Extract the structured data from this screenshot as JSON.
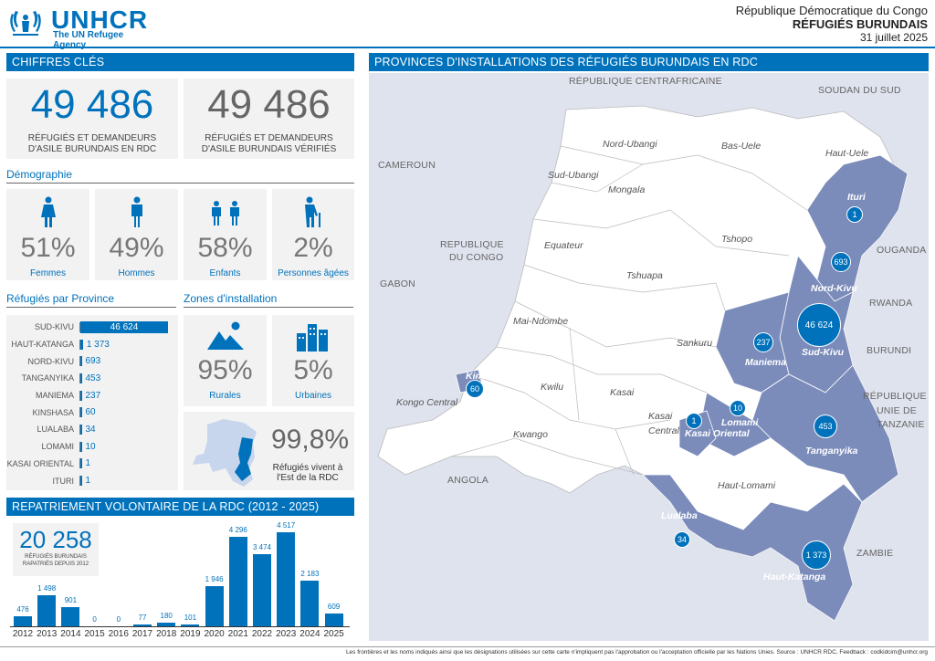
{
  "header": {
    "logo_text": "UNHCR",
    "logo_sub": "The UN Refugee Agency",
    "country": "République Démocratique du Congo",
    "title": "RÉFUGIÉS BURUNDAIS",
    "date": "31 juillet 2025"
  },
  "key": {
    "section_title": "CHIFFRES CLÉS",
    "total_value": "49 486",
    "total_label_1": "RÉFUGIÉS ET DEMANDEURS",
    "total_label_2": "D'ASILE BURUNDAIS EN RDC",
    "verified_value": "49 486",
    "verified_label_1": "RÉFUGIÉS ET DEMANDEURS",
    "verified_label_2": "D'ASILE BURUNDAIS VÉRIFIÉS"
  },
  "demo": {
    "title": "Démographie",
    "items": [
      {
        "pct": "51%",
        "label": "Femmes"
      },
      {
        "pct": "49%",
        "label": "Hommes"
      },
      {
        "pct": "58%",
        "label": "Enfants"
      },
      {
        "pct": "2%",
        "label": "Personnes âgées"
      }
    ]
  },
  "provinces": {
    "title": "Réfugiés par Province",
    "max": 46624,
    "rows": [
      {
        "name": "SUD-KIVU",
        "value": 46624,
        "label": "46 624"
      },
      {
        "name": "HAUT-KATANGA",
        "value": 1373,
        "label": "1 373"
      },
      {
        "name": "NORD-KIVU",
        "value": 693,
        "label": "693"
      },
      {
        "name": "TANGANYIKA",
        "value": 453,
        "label": "453"
      },
      {
        "name": "MANIEMA",
        "value": 237,
        "label": "237"
      },
      {
        "name": "KINSHASA",
        "value": 60,
        "label": "60"
      },
      {
        "name": "LUALABA",
        "value": 34,
        "label": "34"
      },
      {
        "name": "LOMAMI",
        "value": 10,
        "label": "10"
      },
      {
        "name": "KASAI ORIENTAL",
        "value": 1,
        "label": "1"
      },
      {
        "name": "ITURI",
        "value": 1,
        "label": "1"
      }
    ]
  },
  "zones": {
    "title": "Zones d'installation",
    "rural_pct": "95%",
    "rural_label": "Rurales",
    "urban_pct": "5%",
    "urban_label": "Urbaines",
    "east_pct": "99,8%",
    "east_label_1": "Réfugiés vivent à",
    "east_label_2": "l'Est de la RDC"
  },
  "repat": {
    "title": "REPATRIEMENT VOLONTAIRE DE LA RDC (2012 - 2025)",
    "total": "20 258",
    "sub_1": "RÉFUGIÉS BURUNDAIS",
    "sub_2": "RAPATRIÉS DEPUIS 2012"
  },
  "chart_data": {
    "type": "bar",
    "categories": [
      "2012",
      "2013",
      "2014",
      "2015",
      "2016",
      "2017",
      "2018",
      "2019",
      "2020",
      "2021",
      "2022",
      "2023",
      "2024",
      "2025"
    ],
    "values": [
      476,
      1498,
      901,
      0,
      0,
      77,
      180,
      101,
      1946,
      4296,
      3474,
      4517,
      2183,
      609
    ],
    "labels": [
      "476",
      "1 498",
      "901",
      "0",
      "0",
      "77",
      "180",
      "101",
      "1 946",
      "4 296",
      "3 474",
      "4 517",
      "2 183",
      "609"
    ],
    "ylim": [
      0,
      4517
    ]
  },
  "map": {
    "title": "PROVINCES D'INSTALLATIONS DES RÉFUGIÉS BURUNDAIS EN RDC",
    "countries": [
      "RÉPUBLIQUE CENTRAFRICAINE",
      "SOUDAN DU SUD",
      "CAMEROUN",
      "REPUBLIQUE",
      "DU CONGO",
      "GABON",
      "OUGANDA",
      "RWANDA",
      "BURUNDI",
      "RÉPUBLIQUE",
      "UNIE DE",
      "TANZANIE",
      "ANGOLA",
      "ZAMBIE"
    ],
    "white_provinces": [
      "Nord-Ubangi",
      "Bas-Uele",
      "Haut-Uele",
      "Sud-Ubangi",
      "Mongala",
      "Equateur",
      "Tshopo",
      "Tshuapa",
      "Mai-Ndombe",
      "Sankuru",
      "Kwilu",
      "Kasai",
      "Kongo Central",
      "Kwango",
      "Kasai",
      "Central",
      "Haut-Lomami"
    ],
    "blue_provinces": [
      "Ituri",
      "Nord-Kivu",
      "Sud-Kivu",
      "Maniema",
      "Kinshasa",
      "Lomami",
      "Kasai Oriental",
      "Tanganyika",
      "Lualaba",
      "Haut-Katanga"
    ],
    "bubbles": [
      "1",
      "693",
      "46 624",
      "237",
      "60",
      "10",
      "1",
      "453",
      "34",
      "1 373"
    ]
  },
  "footer": "Les frontières et les noms indiqués ainsi que les désignations utilisées sur cette carte n'impliquent pas l'approbation ou l'acceptation officielle par les Nations Unies. Source : UNHCR RDC, Feedback : codkidcim@unhcr.org",
  "colors": {
    "accent": "#0072bc",
    "map_blue": "#7b8cbb",
    "sea": "#dfe3ee"
  }
}
